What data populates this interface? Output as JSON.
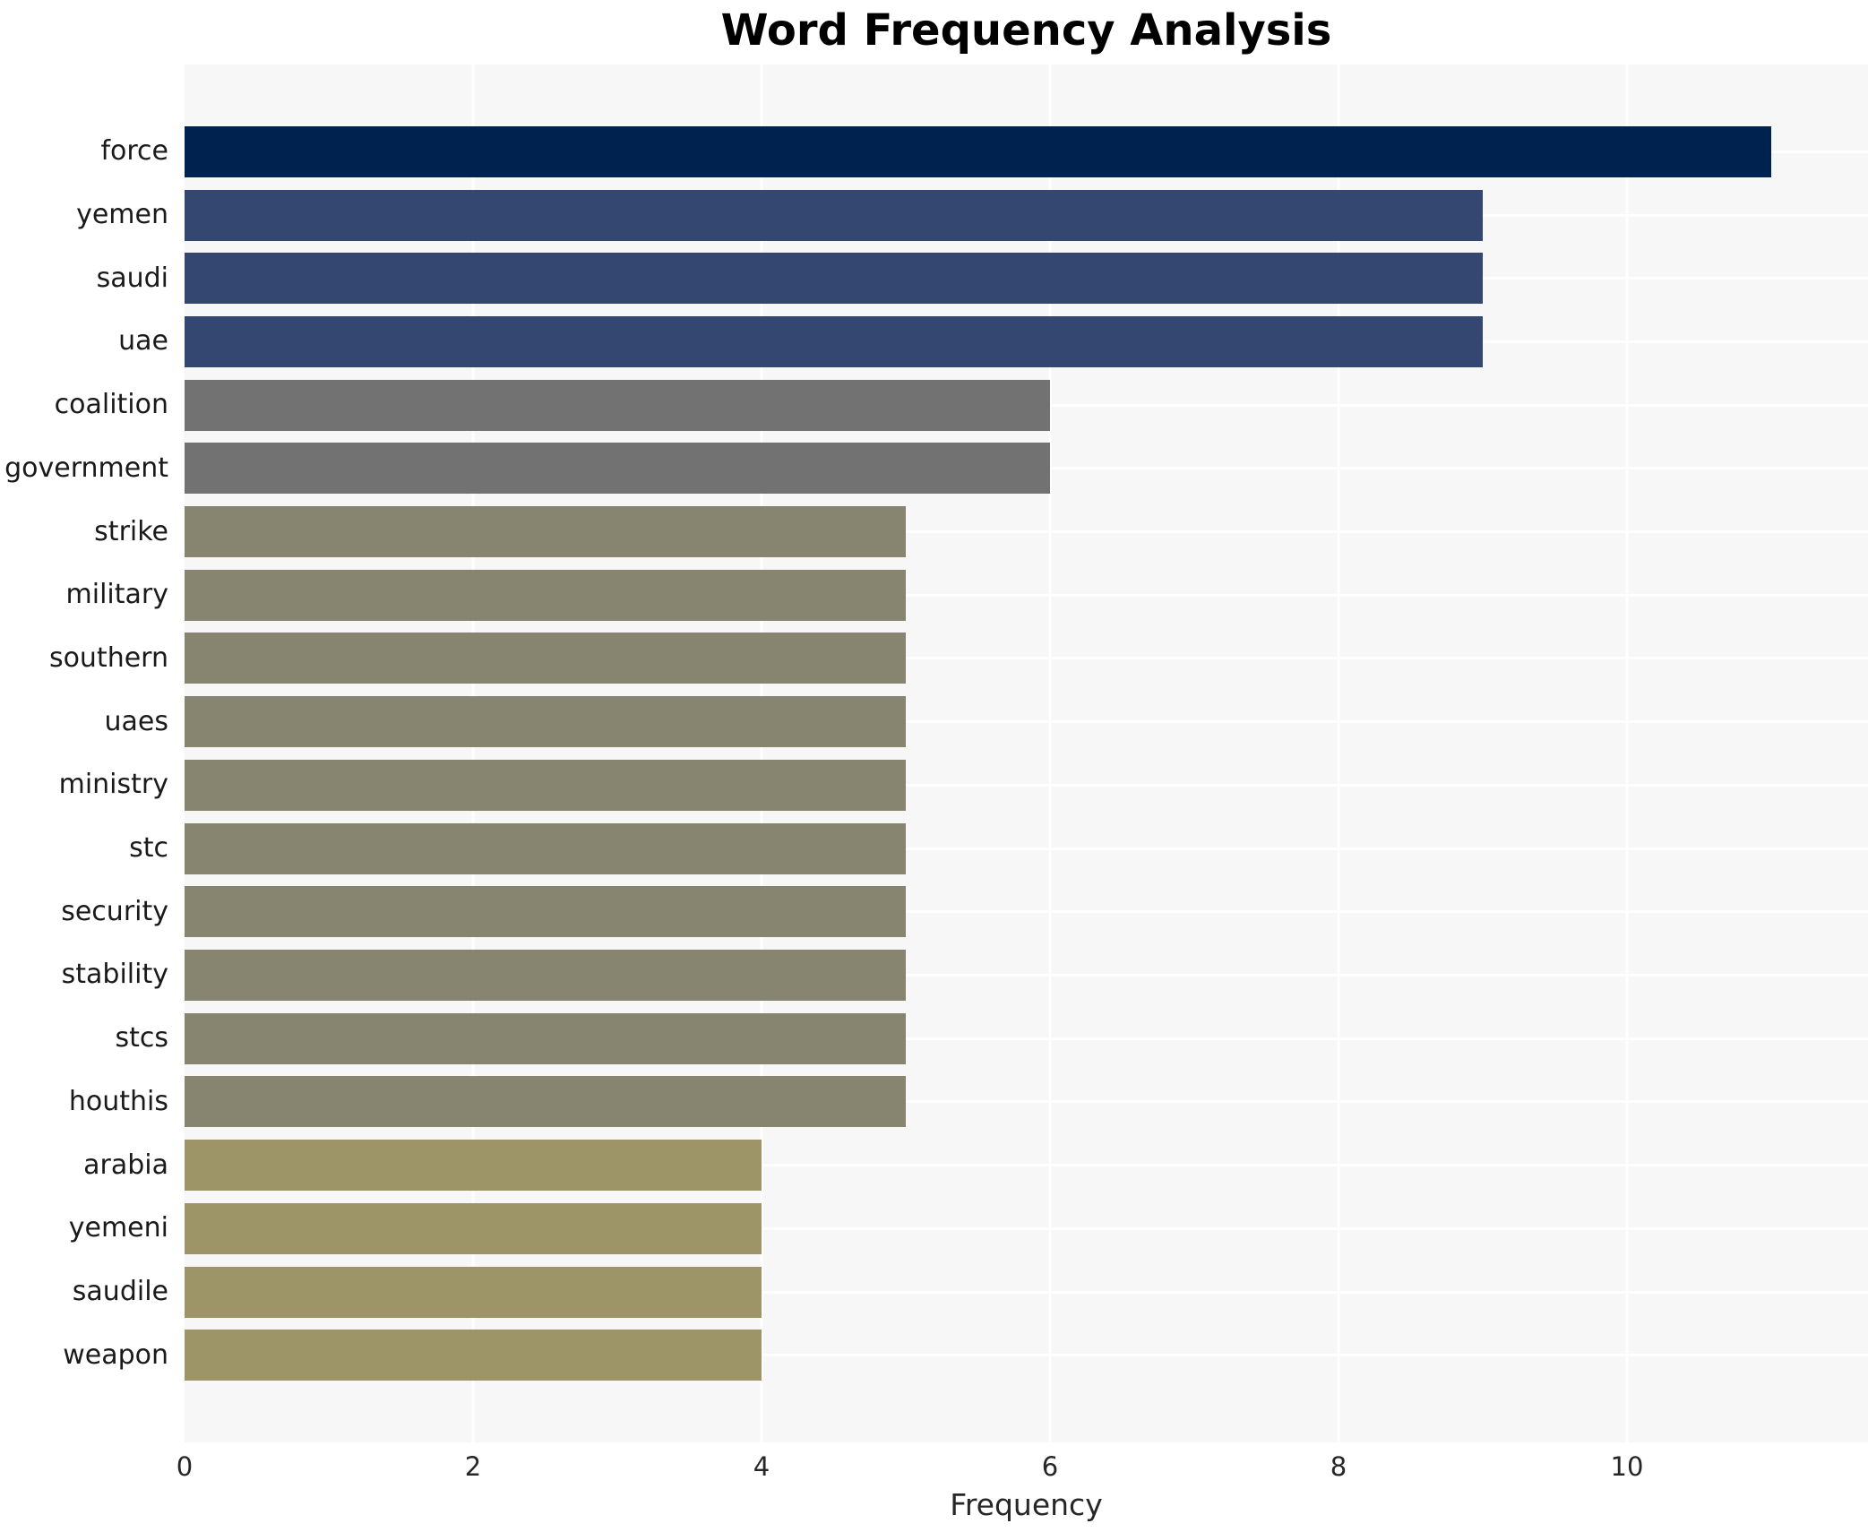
{
  "chart_data": {
    "type": "bar",
    "orientation": "horizontal",
    "title": "Word Frequency Analysis",
    "xlabel": "Frequency",
    "ylabel": "",
    "categories": [
      "force",
      "yemen",
      "saudi",
      "uae",
      "coalition",
      "government",
      "strike",
      "military",
      "southern",
      "uaes",
      "ministry",
      "stc",
      "security",
      "stability",
      "stcs",
      "houthis",
      "arabia",
      "yemeni",
      "saudile",
      "weapon"
    ],
    "values": [
      11,
      9,
      9,
      9,
      6,
      6,
      5,
      5,
      5,
      5,
      5,
      5,
      5,
      5,
      5,
      5,
      4,
      4,
      4,
      4
    ],
    "bar_colors": [
      "#00224e",
      "#334770",
      "#334770",
      "#334770",
      "#727272",
      "#727272",
      "#878470",
      "#878470",
      "#878470",
      "#878470",
      "#878470",
      "#878470",
      "#878470",
      "#878470",
      "#878470",
      "#878470",
      "#9d9468",
      "#9d9468",
      "#9d9468",
      "#9d9468"
    ],
    "xticks": [
      0,
      2,
      4,
      6,
      8,
      10
    ],
    "xlim": [
      0,
      11.67
    ],
    "grid": "white gridlines at even x values and at bar centers, drawn behind bars",
    "legend_position": "none"
  },
  "colors": {
    "page_background": "#ffffff",
    "plot_background": "#f7f7f7",
    "gridline": "#ffffff",
    "title_text": "#000000",
    "label_text": "#1a1a1a",
    "tick_text": "#262626"
  }
}
